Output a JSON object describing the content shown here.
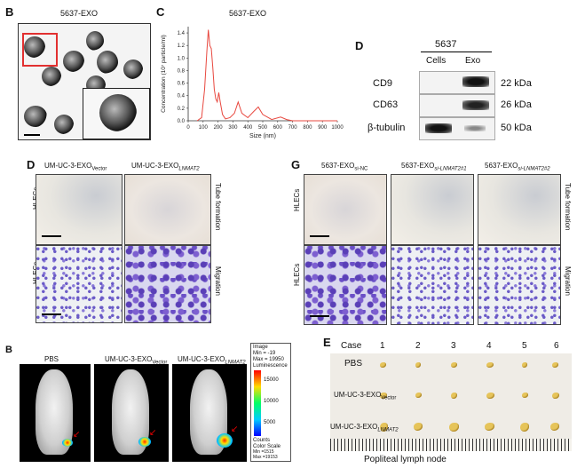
{
  "panelB": {
    "letter": "B",
    "title": "5637-EXO"
  },
  "panelC": {
    "letter": "C",
    "title": "5637-EXO",
    "ylabel": "Concentration (10⁷ particle/ml)",
    "xlabel": "Size (nm)"
  },
  "panelD_top": {
    "letter": "D",
    "header": "5637",
    "col_cells": "Cells",
    "col_exo": "Exo",
    "rows": [
      {
        "label": "CD9",
        "kda": "22 kDa"
      },
      {
        "label": "CD63",
        "kda": "26 kDa"
      },
      {
        "label": "β-tubulin",
        "kda": "50 kDa"
      }
    ]
  },
  "panelD_mid": {
    "letter": "D",
    "col1_base": "UM-UC-3-EXO",
    "col1_sub": "Vector",
    "col2_base": "UM-UC-3-EXO",
    "col2_sub": "LNMAT2",
    "row_label": "HLECs",
    "side_top": "Tube formation",
    "side_bottom": "Migration"
  },
  "panelG": {
    "letter": "G",
    "col1_base": "5637-EXO",
    "col1_sub": "si-NC",
    "col2_base": "5637-EXO",
    "col2_sub": "si-LNMAT2#1",
    "col3_base": "5637-EXO",
    "col3_sub": "si-LNMAT2#2",
    "row_label": "HLECs",
    "side_top": "Tube formation",
    "side_bottom": "Migration"
  },
  "panelB2": {
    "letter": "B",
    "labels": [
      "PBS",
      "UM-UC-3-EXO",
      "UM-UC-3-EXO"
    ],
    "subs": [
      "",
      "Vector",
      "LNMAT2"
    ],
    "scale": {
      "image_title": "Image",
      "image_min": "Min = -19",
      "image_max": "Max = 19950",
      "lum_title": "Luminescence",
      "ticks": [
        "15000",
        "10000",
        "5000"
      ],
      "counts": "Counts",
      "color_scale": "Color Scale",
      "cs_min": "Min =1515",
      "cs_max": "Max =19153"
    }
  },
  "panelE": {
    "letter": "E",
    "case_label": "Case",
    "cases": [
      "1",
      "2",
      "3",
      "4",
      "5",
      "6"
    ],
    "rows": [
      {
        "base": "PBS",
        "sub": ""
      },
      {
        "base": "UM-UC-3-EXO",
        "sub": "Vector"
      },
      {
        "base": "UM-UC-3-EXO",
        "sub": "LNMAT2"
      }
    ],
    "footer": "Popliteal lymph node"
  },
  "chart_data": {
    "type": "line",
    "title": "5637-EXO",
    "xlabel": "Size (nm)",
    "ylabel": "Concentration (10⁷ particle/ml)",
    "xlim": [
      0,
      1000
    ],
    "ylim": [
      0,
      1.5
    ],
    "xticks": [
      0,
      100,
      200,
      300,
      400,
      500,
      600,
      700,
      800,
      900,
      1000
    ],
    "yticks": [
      0.0,
      0.2,
      0.4,
      0.6,
      0.8,
      1.0,
      1.2,
      1.4
    ],
    "color": "#e8483f",
    "series": [
      {
        "x": [
          60,
          90,
          110,
          125,
          135,
          145,
          155,
          165,
          175,
          185,
          195,
          205,
          215,
          230,
          250,
          280,
          310,
          335,
          360,
          400,
          440,
          470,
          500,
          560,
          620,
          660,
          700,
          800,
          900,
          1000
        ],
        "y": [
          0,
          0.05,
          0.5,
          1.1,
          1.45,
          1.2,
          1.15,
          0.85,
          0.5,
          0.35,
          0.3,
          0.45,
          0.3,
          0.1,
          0.03,
          0.05,
          0.12,
          0.3,
          0.12,
          0.05,
          0.15,
          0.22,
          0.1,
          0.02,
          0.06,
          0.02,
          0.0,
          0.0,
          0.0,
          0.0
        ]
      }
    ]
  }
}
